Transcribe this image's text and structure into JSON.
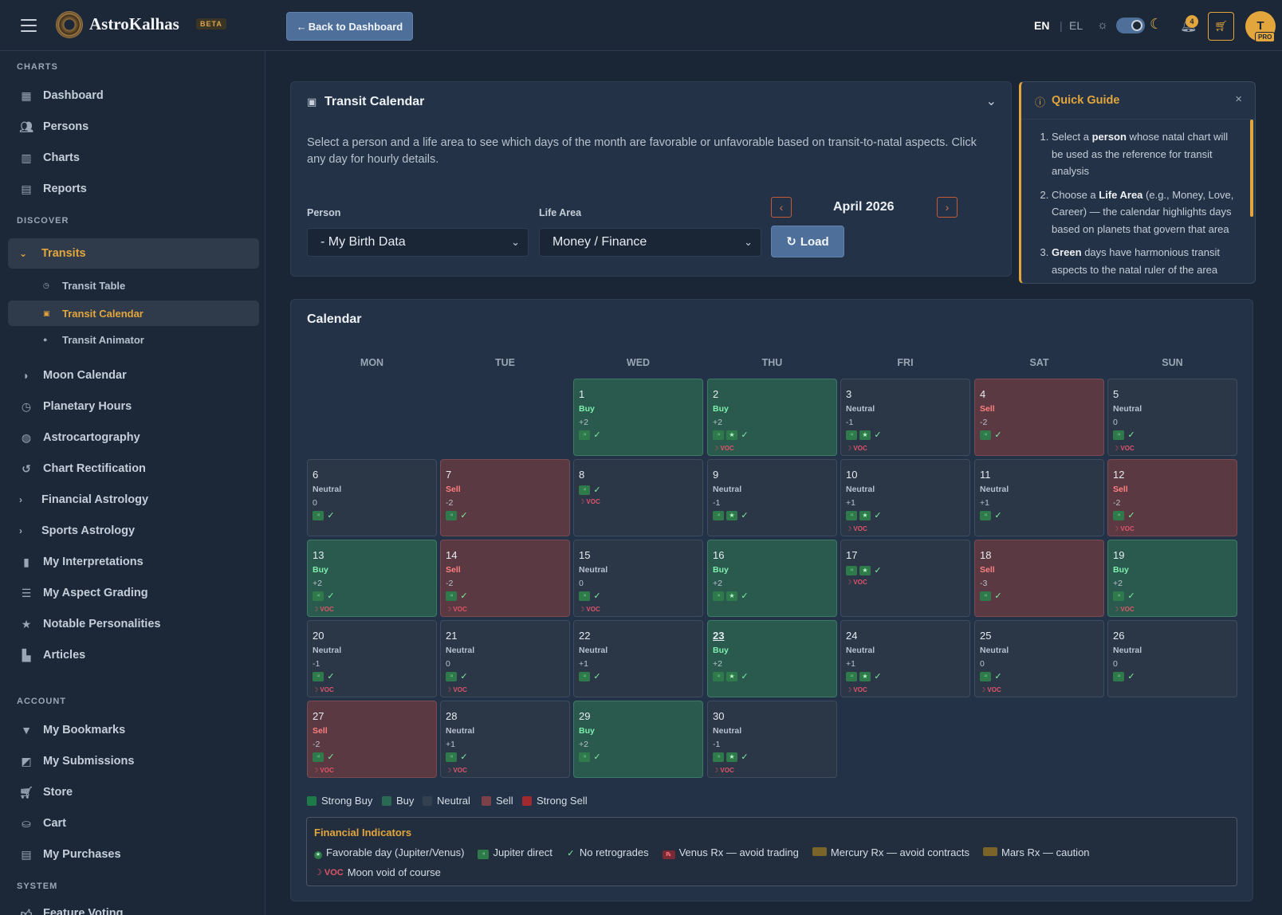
{
  "app": {
    "brand": "AstroKalhas",
    "badge": "BETA",
    "back_label": "Back to Dashboard",
    "lang_en": "EN",
    "lang_el": "EL",
    "lang_sep": "|",
    "notif_count": "4",
    "avatar_initial": "T",
    "plan": "PRO",
    "accent": "#e3a63c"
  },
  "sidebar": {
    "sections": {
      "charts": "CHARTS",
      "discover": "DISCOVER",
      "account": "ACCOUNT",
      "system": "SYSTEM"
    },
    "charts_items": [
      {
        "label": "Dashboard",
        "icon": "dashboard-icon"
      },
      {
        "label": "Persons",
        "icon": "people-icon"
      },
      {
        "label": "Charts",
        "icon": "chart-icon"
      },
      {
        "label": "Reports",
        "icon": "reports-icon"
      }
    ],
    "transits": {
      "label": "Transits",
      "sub": [
        {
          "label": "Transit Table",
          "icon": "clock-icon"
        },
        {
          "label": "Transit Calendar",
          "icon": "calendar-icon"
        },
        {
          "label": "Transit Animator",
          "icon": "play-icon"
        }
      ]
    },
    "discover_items": [
      {
        "label": "Moon Calendar",
        "icon": "moon-icon"
      },
      {
        "label": "Planetary Hours",
        "icon": "clock-icon"
      },
      {
        "label": "Astrocartography",
        "icon": "globe-icon"
      },
      {
        "label": "Chart Rectification",
        "icon": "history-icon"
      },
      {
        "label": "Financial Astrology",
        "icon": "chevron-right-icon"
      },
      {
        "label": "Sports Astrology",
        "icon": "chevron-right-icon"
      },
      {
        "label": "My Interpretations",
        "icon": "book-icon"
      },
      {
        "label": "My Aspect Grading",
        "icon": "sliders-icon"
      },
      {
        "label": "Notable Personalities",
        "icon": "star-icon"
      },
      {
        "label": "Articles",
        "icon": "articles-icon"
      }
    ],
    "account_items": [
      {
        "label": "My Bookmarks",
        "icon": "bookmark-icon"
      },
      {
        "label": "My Submissions",
        "icon": "submissions-icon"
      },
      {
        "label": "Store",
        "icon": "store-icon"
      },
      {
        "label": "Cart",
        "icon": "basket-icon"
      },
      {
        "label": "My Purchases",
        "icon": "purchases-icon"
      }
    ],
    "system_items": [
      {
        "label": "Feature Voting",
        "icon": "thumb-icon"
      }
    ]
  },
  "transit_calendar": {
    "title": "Transit Calendar",
    "description": "Select a person and a life area to see which days of the month are favorable or unfavorable based on transit-to-natal aspects. Click any day for hourly details.",
    "person_label": "Person",
    "person_value": "- My Birth Data",
    "area_label": "Life Area",
    "area_value": "Money / Finance",
    "month": "April 2026",
    "load_label": "Load"
  },
  "guide": {
    "title": "Quick Guide",
    "close": "×",
    "items": [
      {
        "pre": "Select a ",
        "bold": "person",
        "post": " whose natal chart will be used as the reference for transit analysis"
      },
      {
        "pre": "Choose a ",
        "bold": "Life Area",
        "post": " (e.g., Money, Love, Career) — the calendar highlights days based on planets that govern that area"
      },
      {
        "pre": "",
        "bold": "Green",
        "post": " days have harmonious transit aspects to the natal ruler of the area"
      }
    ]
  },
  "calendar": {
    "title": "Calendar",
    "weekdays": [
      "MON",
      "TUE",
      "WED",
      "THU",
      "FRI",
      "SAT",
      "SUN"
    ],
    "first_weekday": 2,
    "days": [
      {
        "d": "1",
        "s": "Buy",
        "sc": "+2",
        "t": "buy",
        "ic": [
          "jd",
          "ck"
        ],
        "voc": false
      },
      {
        "d": "2",
        "s": "Buy",
        "sc": "+2",
        "t": "buy",
        "ic": [
          "jd",
          "st",
          "ck"
        ],
        "voc": true
      },
      {
        "d": "3",
        "s": "Neutral",
        "sc": "-1",
        "t": "neutral",
        "ic": [
          "jd",
          "st",
          "ck"
        ],
        "voc": true
      },
      {
        "d": "4",
        "s": "Sell",
        "sc": "-2",
        "t": "sell",
        "ic": [
          "jd",
          "ck"
        ],
        "voc": false
      },
      {
        "d": "5",
        "s": "Neutral",
        "sc": "0",
        "t": "neutral",
        "ic": [
          "jd",
          "ck"
        ],
        "voc": true
      },
      {
        "d": "6",
        "s": "Neutral",
        "sc": "0",
        "t": "neutral",
        "ic": [
          "jd",
          "ck"
        ],
        "voc": false
      },
      {
        "d": "7",
        "s": "Sell",
        "sc": "-2",
        "t": "sell",
        "ic": [
          "jd",
          "ck"
        ],
        "voc": false
      },
      {
        "d": "8",
        "s": "",
        "sc": "",
        "t": "neutral",
        "ic": [
          "jd",
          "ck"
        ],
        "voc": true
      },
      {
        "d": "9",
        "s": "Neutral",
        "sc": "-1",
        "t": "neutral",
        "ic": [
          "jd",
          "st",
          "ck"
        ],
        "voc": false
      },
      {
        "d": "10",
        "s": "Neutral",
        "sc": "+1",
        "t": "neutral",
        "ic": [
          "jd",
          "st",
          "ck"
        ],
        "voc": true
      },
      {
        "d": "11",
        "s": "Neutral",
        "sc": "+1",
        "t": "neutral",
        "ic": [
          "jd",
          "ck"
        ],
        "voc": false
      },
      {
        "d": "12",
        "s": "Sell",
        "sc": "-2",
        "t": "sell",
        "ic": [
          "jd",
          "ck"
        ],
        "voc": true
      },
      {
        "d": "13",
        "s": "Buy",
        "sc": "+2",
        "t": "buy",
        "ic": [
          "jd",
          "ck"
        ],
        "voc": true
      },
      {
        "d": "14",
        "s": "Sell",
        "sc": "-2",
        "t": "sell",
        "ic": [
          "jd",
          "ck"
        ],
        "voc": true
      },
      {
        "d": "15",
        "s": "Neutral",
        "sc": "0",
        "t": "neutral",
        "ic": [
          "jd",
          "ck"
        ],
        "voc": true
      },
      {
        "d": "16",
        "s": "Buy",
        "sc": "+2",
        "t": "buy",
        "ic": [
          "jd",
          "st",
          "ck"
        ],
        "voc": false
      },
      {
        "d": "17",
        "s": "",
        "sc": "",
        "t": "neutral",
        "ic": [
          "jd",
          "st",
          "ck"
        ],
        "voc": true
      },
      {
        "d": "18",
        "s": "Sell",
        "sc": "-3",
        "t": "sell",
        "ic": [
          "jd",
          "ck"
        ],
        "voc": false
      },
      {
        "d": "19",
        "s": "Buy",
        "sc": "+2",
        "t": "buy",
        "ic": [
          "jd",
          "ck"
        ],
        "voc": true
      },
      {
        "d": "20",
        "s": "Neutral",
        "sc": "-1",
        "t": "neutral",
        "ic": [
          "jd",
          "ck"
        ],
        "voc": true
      },
      {
        "d": "21",
        "s": "Neutral",
        "sc": "0",
        "t": "neutral",
        "ic": [
          "jd",
          "ck"
        ],
        "voc": true
      },
      {
        "d": "22",
        "s": "Neutral",
        "sc": "+1",
        "t": "neutral",
        "ic": [
          "jd",
          "ck"
        ],
        "voc": false
      },
      {
        "d": "23",
        "s": "Buy",
        "sc": "+2",
        "t": "buy",
        "ic": [
          "jd",
          "st",
          "ck"
        ],
        "voc": false,
        "today": true
      },
      {
        "d": "24",
        "s": "Neutral",
        "sc": "+1",
        "t": "neutral",
        "ic": [
          "jd",
          "st",
          "ck"
        ],
        "voc": true
      },
      {
        "d": "25",
        "s": "Neutral",
        "sc": "0",
        "t": "neutral",
        "ic": [
          "jd",
          "ck"
        ],
        "voc": true
      },
      {
        "d": "26",
        "s": "Neutral",
        "sc": "0",
        "t": "neutral",
        "ic": [
          "jd",
          "ck"
        ],
        "voc": false
      },
      {
        "d": "27",
        "s": "Sell",
        "sc": "-2",
        "t": "sell",
        "ic": [
          "jd",
          "ck"
        ],
        "voc": true
      },
      {
        "d": "28",
        "s": "Neutral",
        "sc": "+1",
        "t": "neutral",
        "ic": [
          "jd",
          "ck"
        ],
        "voc": true
      },
      {
        "d": "29",
        "s": "Buy",
        "sc": "+2",
        "t": "buy",
        "ic": [
          "jd",
          "ck"
        ],
        "voc": false
      },
      {
        "d": "30",
        "s": "Neutral",
        "sc": "-1",
        "t": "neutral",
        "ic": [
          "jd",
          "st",
          "ck"
        ],
        "voc": true
      }
    ],
    "voc_label": "☽ VOC",
    "legend": [
      {
        "label": "Strong Buy",
        "color": "#1f7a4a"
      },
      {
        "label": "Buy",
        "color": "#2a6a55"
      },
      {
        "label": "Neutral",
        "color": "#34404f"
      },
      {
        "label": "Sell",
        "color": "#7a4248"
      },
      {
        "label": "Strong Sell",
        "color": "#a02a30"
      }
    ]
  },
  "financial": {
    "title": "Financial Indicators",
    "items": [
      {
        "mark": "star",
        "label": "Favorable day (Jupiter/Venus)"
      },
      {
        "mark": "jd",
        "label": "Jupiter direct"
      },
      {
        "mark": "check",
        "label": "No retrogrades"
      },
      {
        "mark": "rx",
        "label": "Venus Rx — avoid trading"
      },
      {
        "mark": "olive",
        "label": "Mercury Rx — avoid contracts"
      },
      {
        "mark": "olive",
        "label": "Mars Rx — caution"
      },
      {
        "mark": "voc",
        "mark_text": "☽ VOC",
        "label": "Moon void of course"
      }
    ]
  }
}
